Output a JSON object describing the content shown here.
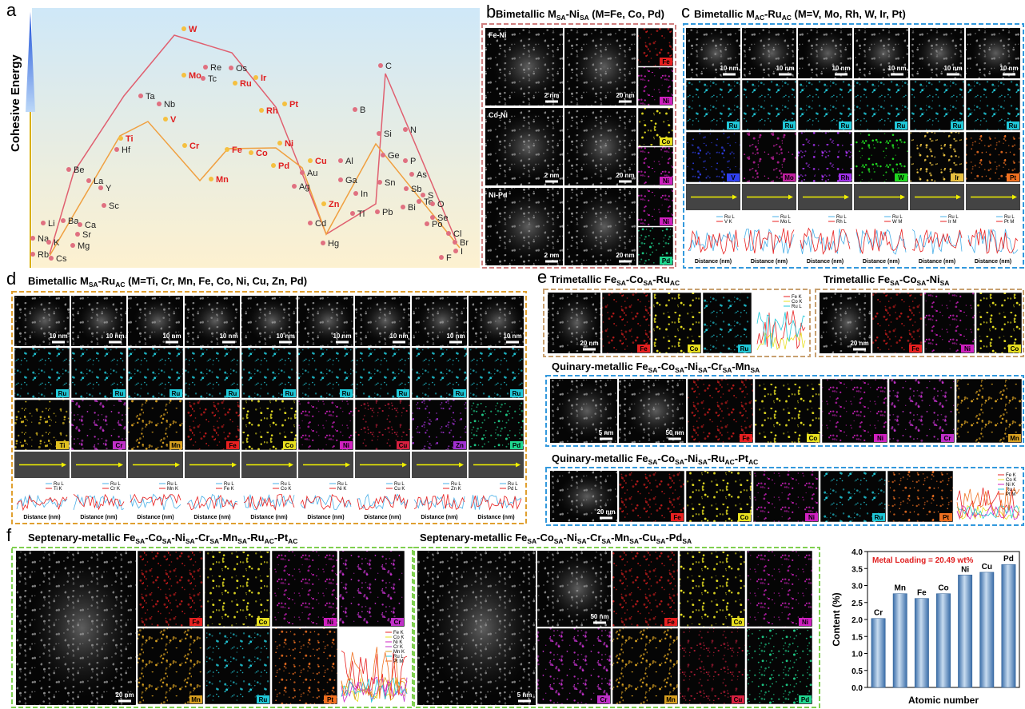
{
  "panel_a": {
    "letter": "a",
    "y_label": "Cohesive Energy",
    "elements": [
      "Li",
      "Be",
      "Na",
      "K",
      "Rb",
      "Cs",
      "Ba",
      "Ca",
      "Sr",
      "Mg",
      "La",
      "Y",
      "Sc",
      "Hf",
      "Ti",
      "Ta",
      "Nb",
      "V",
      "W",
      "Mo",
      "Cr",
      "Mn",
      "Re",
      "Tc",
      "Fe",
      "Os",
      "Ru",
      "Co",
      "Ir",
      "Rh",
      "Pt",
      "Ni",
      "Pd",
      "Au",
      "Cu",
      "Ag",
      "Zn",
      "Cd",
      "Hg",
      "B",
      "Al",
      "Ga",
      "In",
      "Tl",
      "C",
      "Si",
      "Ge",
      "Sn",
      "Pb",
      "N",
      "P",
      "As",
      "Sb",
      "Bi",
      "Te",
      "S",
      "O",
      "Se",
      "Po",
      "Cl",
      "Br",
      "I",
      "F"
    ]
  },
  "panel_b": {
    "letter": "b",
    "title": [
      "Bimetallic M",
      "SA",
      "-Ni",
      "SA",
      " (M=Fe, Co, Pd)"
    ],
    "rows": [
      {
        "label": "Fe-Ni",
        "scales": [
          "2 nm",
          "20 nm"
        ],
        "maps": [
          "Fe",
          "Ni"
        ]
      },
      {
        "label": "Co-Ni",
        "scales": [
          "2 nm",
          "20 nm"
        ],
        "maps": [
          "Co",
          "Ni"
        ]
      },
      {
        "label": "Ni-Pd",
        "scales": [
          "2 nm",
          "20 nm"
        ],
        "maps": [
          "Ni",
          "Pd"
        ]
      }
    ]
  },
  "panel_c": {
    "letter": "c",
    "title": [
      "Bimetallic M",
      "AC",
      "-Ru",
      "AC",
      " (M=V, Mo, Rh, W, Ir, Pt)"
    ],
    "support": "Ru",
    "distance_label": "Distance (nm)",
    "columns": [
      {
        "metal": "V",
        "scale": "10 nm",
        "legend": [
          "Ru L",
          "V K"
        ]
      },
      {
        "metal": "Mo",
        "scale": "10 nm",
        "legend": [
          "Ru L",
          "Mo L"
        ]
      },
      {
        "metal": "Rh",
        "scale": "10 nm",
        "legend": [
          "Ru L",
          "Rh L"
        ]
      },
      {
        "metal": "W",
        "scale": "10 nm",
        "legend": [
          "Ru L",
          "W M"
        ]
      },
      {
        "metal": "Ir",
        "scale": "10 nm",
        "legend": [
          "Ru L",
          "Ir M"
        ]
      },
      {
        "metal": "Pt",
        "scale": "10 nm",
        "legend": [
          "Ru L",
          "Pt M"
        ]
      }
    ]
  },
  "panel_d": {
    "letter": "d",
    "title": [
      "Bimetallic M",
      "SA",
      "-Ru",
      "AC",
      " (M=Ti, Cr, Mn, Fe, Co, Ni, Cu, Zn, Pd)"
    ],
    "support": "Ru",
    "distance_label": "Distance (nm)",
    "columns": [
      {
        "metal": "Ti",
        "scale": "10 nm",
        "legend": [
          "Ru L",
          "Ti K"
        ]
      },
      {
        "metal": "Cr",
        "scale": "10 nm",
        "legend": [
          "Ru L",
          "Cr K"
        ]
      },
      {
        "metal": "Mn",
        "scale": "10 nm",
        "legend": [
          "Ru L",
          "Mn K"
        ]
      },
      {
        "metal": "Fe",
        "scale": "10 nm",
        "legend": [
          "Ru L",
          "Fe K"
        ]
      },
      {
        "metal": "Co",
        "scale": "10 nm",
        "legend": [
          "Ru L",
          "Co K"
        ]
      },
      {
        "metal": "Ni",
        "scale": "10 nm",
        "legend": [
          "Ru L",
          "Ni K"
        ]
      },
      {
        "metal": "Cu",
        "scale": "10 nm",
        "legend": [
          "Ru L",
          "Cu K"
        ]
      },
      {
        "metal": "Zn",
        "scale": "10 nm",
        "legend": [
          "Ru L",
          "Zn K"
        ]
      },
      {
        "metal": "Pd",
        "scale": "10 nm",
        "legend": [
          "Ru L",
          "Pd L"
        ]
      }
    ]
  },
  "panel_e": {
    "letter": "e",
    "blocks": [
      {
        "title": [
          "Trimetallic Fe",
          "SA",
          "-Co",
          "SA",
          "-Ru",
          "AC"
        ],
        "scales": [
          "20 nm"
        ],
        "maps": [
          "Fe",
          "Co",
          "Ru"
        ],
        "legend": [
          "Fe K",
          "Co K",
          "Ru L"
        ]
      },
      {
        "title": [
          "Trimetallic Fe",
          "SA",
          "-Co",
          "SA",
          "-Ni",
          "SA"
        ],
        "scales": [
          "20 nm"
        ],
        "maps": [
          "Fe",
          "Ni",
          "Co"
        ]
      },
      {
        "title": [
          "Quinary-metallic Fe",
          "SA",
          "-Co",
          "SA",
          "-Ni",
          "SA",
          "-Cr",
          "SA",
          "-Mn",
          "SA"
        ],
        "scales": [
          "5 nm",
          "50 nm"
        ],
        "maps": [
          "Fe",
          "Co",
          "Ni",
          "Cr",
          "Mn"
        ]
      },
      {
        "title": [
          "Quinary-metallic Fe",
          "SA",
          "-Co",
          "SA",
          "-Ni",
          "SA",
          "-Ru",
          "AC",
          "-Pt",
          "AC"
        ],
        "scales": [
          "20 nm"
        ],
        "maps": [
          "Fe",
          "Co",
          "Ni",
          "Ru",
          "Pt"
        ],
        "legend": [
          "Fe K",
          "Co K",
          "Ni K",
          "Ru L",
          "Pt M"
        ]
      }
    ]
  },
  "panel_f": {
    "letter": "f",
    "blocks": [
      {
        "title": [
          "Septenary-metallic Fe",
          "SA",
          "-Co",
          "SA",
          "-Ni",
          "SA",
          "-Cr",
          "SA",
          "-Mn",
          "SA",
          "-Ru",
          "AC",
          "-Pt",
          "AC"
        ],
        "scales": [
          "20 nm"
        ],
        "maps": [
          "Fe",
          "Co",
          "Ni",
          "Cr",
          "Mn",
          "Ru",
          "Pt"
        ],
        "legend": [
          "Fe K",
          "Co K",
          "Ni K",
          "Cr K",
          "Mn K",
          "Ru L",
          "Pt M"
        ]
      },
      {
        "title": [
          "Septenary-metallic Fe",
          "SA",
          "-Co",
          "SA",
          "-Ni",
          "SA",
          "-Cr",
          "SA",
          "-Mn",
          "SA",
          "-Cu",
          "SA",
          "-Pd",
          "SA"
        ],
        "scales": [
          "5 nm",
          "50 nm"
        ],
        "maps": [
          "Fe",
          "Co",
          "Ni",
          "Cr",
          "Mn",
          "Cu",
          "Pd"
        ]
      }
    ]
  },
  "chart_data": {
    "type": "bar",
    "y_label": "Content (%)",
    "x_label": "Atomic number",
    "annotation": "Metal Loading = 20.49 wt%",
    "categories": [
      "Cr",
      "Mn",
      "Fe",
      "Co",
      "Ni",
      "Cu",
      "Pd"
    ],
    "values": [
      2.03,
      2.76,
      2.62,
      2.76,
      3.31,
      3.39,
      3.62
    ],
    "ylim": [
      0,
      4
    ],
    "yticks": [
      {
        "value": 0,
        "label": "0.0"
      },
      {
        "value": 0.5,
        "label": "0.5"
      },
      {
        "value": 1,
        "label": "1.0"
      },
      {
        "value": 1.5,
        "label": "1.5"
      },
      {
        "value": 2,
        "label": "2.0"
      },
      {
        "value": 2.5,
        "label": "2.5"
      },
      {
        "value": 3,
        "label": "3.0"
      },
      {
        "value": 3.5,
        "label": "3.5"
      },
      {
        "value": 4,
        "label": "4.0"
      }
    ]
  },
  "element_colors": {
    "Fe": "#e82020",
    "Co": "#e8e020",
    "Ni": "#d020c0",
    "Ru": "#20c8d8",
    "Pd": "#20d890",
    "Ti": "#e0c020",
    "Cr": "#c030c8",
    "Mn": "#d8a020",
    "Cu": "#d82040",
    "Zn": "#a030d0",
    "V": "#3040f0",
    "Mo": "#c020a0",
    "Rh": "#a030e8",
    "W": "#20d820",
    "Ir": "#e8c040",
    "Pt": "#f07020"
  }
}
